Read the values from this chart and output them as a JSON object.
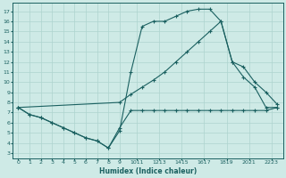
{
  "xlabel": "Humidex (Indice chaleur)",
  "bg_color": "#ceeae6",
  "grid_color": "#aed4cf",
  "line_color": "#1a6060",
  "xlim": [
    -0.5,
    23.5
  ],
  "ylim": [
    2.5,
    17.8
  ],
  "xtick_labels": [
    "0",
    "1",
    "2",
    "3",
    "4",
    "5",
    "6",
    "7",
    "8",
    "9",
    "1011",
    "1213",
    "1415",
    "1617",
    "1819",
    "2021",
    "2223"
  ],
  "xtick_pos": [
    0,
    1,
    2,
    3,
    4,
    5,
    6,
    7,
    8,
    9,
    10.5,
    12.5,
    14.5,
    16.5,
    18.5,
    20.5,
    22.5
  ],
  "yticks": [
    3,
    4,
    5,
    6,
    7,
    8,
    9,
    10,
    11,
    12,
    13,
    14,
    15,
    16,
    17
  ],
  "series1_x": [
    0,
    1,
    2,
    3,
    4,
    5,
    6,
    7,
    8,
    9,
    10,
    11,
    12,
    13,
    14,
    15,
    16,
    17,
    18,
    19,
    20,
    21,
    22,
    23
  ],
  "series1_y": [
    7.5,
    6.8,
    6.5,
    6.0,
    5.5,
    5.0,
    4.5,
    4.2,
    3.5,
    5.2,
    11.0,
    15.5,
    16.0,
    16.0,
    16.5,
    17.0,
    17.2,
    17.2,
    16.0,
    12.0,
    10.5,
    9.5,
    7.5,
    7.5
  ],
  "series2_x": [
    0,
    1,
    2,
    3,
    4,
    5,
    6,
    7,
    8,
    9,
    10,
    11,
    12,
    13,
    14,
    15,
    16,
    17,
    18,
    19,
    20,
    21,
    22,
    23
  ],
  "series2_y": [
    7.5,
    6.8,
    6.5,
    6.0,
    5.5,
    5.0,
    4.5,
    4.2,
    3.5,
    5.5,
    7.2,
    7.2,
    7.2,
    7.2,
    7.2,
    7.2,
    7.2,
    7.2,
    7.2,
    7.2,
    7.2,
    7.2,
    7.2,
    7.5
  ],
  "series3_x": [
    0,
    9,
    10,
    11,
    12,
    13,
    14,
    15,
    16,
    17,
    18,
    19,
    20,
    21,
    22,
    23
  ],
  "series3_y": [
    7.5,
    8.0,
    8.8,
    9.5,
    10.2,
    11.0,
    12.0,
    13.0,
    14.0,
    15.0,
    16.0,
    12.0,
    11.5,
    10.0,
    9.0,
    7.8
  ]
}
